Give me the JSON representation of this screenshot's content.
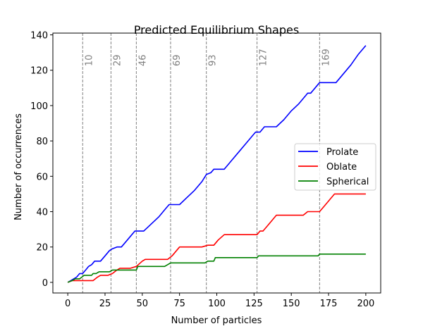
{
  "chart_data": {
    "type": "line",
    "title": "Predicted Equilibrium Shapes",
    "xlabel": "Number of particles",
    "ylabel": "Number of occurrences",
    "xlim": [
      -10,
      210
    ],
    "ylim": [
      -6,
      141
    ],
    "xticks": [
      0,
      25,
      50,
      75,
      100,
      125,
      150,
      175,
      200
    ],
    "yticks": [
      0,
      20,
      40,
      60,
      80,
      100,
      120,
      140
    ],
    "grid": false,
    "legend_position": "center-right",
    "vlines": [
      {
        "x": 10,
        "label": "10"
      },
      {
        "x": 29,
        "label": "29"
      },
      {
        "x": 46,
        "label": "46"
      },
      {
        "x": 69,
        "label": "69"
      },
      {
        "x": 93,
        "label": "93"
      },
      {
        "x": 127,
        "label": "127"
      },
      {
        "x": 169,
        "label": "169"
      }
    ],
    "series": [
      {
        "name": "Prolate",
        "color": "#0000ff",
        "points": [
          [
            0,
            0
          ],
          [
            2,
            1
          ],
          [
            4,
            2
          ],
          [
            6,
            3
          ],
          [
            8,
            5
          ],
          [
            10,
            5
          ],
          [
            12,
            7
          ],
          [
            14,
            9
          ],
          [
            16,
            10
          ],
          [
            18,
            12
          ],
          [
            22,
            12
          ],
          [
            25,
            15
          ],
          [
            28,
            18
          ],
          [
            30,
            19
          ],
          [
            33,
            20
          ],
          [
            36,
            20
          ],
          [
            39,
            23
          ],
          [
            42,
            26
          ],
          [
            45,
            29
          ],
          [
            51,
            29
          ],
          [
            56,
            33
          ],
          [
            61,
            37
          ],
          [
            66,
            42
          ],
          [
            68,
            44
          ],
          [
            70,
            44
          ],
          [
            75,
            44
          ],
          [
            80,
            48
          ],
          [
            85,
            52
          ],
          [
            90,
            57
          ],
          [
            93,
            61
          ],
          [
            96,
            62
          ],
          [
            98,
            64
          ],
          [
            105,
            64
          ],
          [
            110,
            69
          ],
          [
            115,
            74
          ],
          [
            120,
            79
          ],
          [
            125,
            84
          ],
          [
            126,
            85
          ],
          [
            129,
            85
          ],
          [
            132,
            88
          ],
          [
            140,
            88
          ],
          [
            145,
            92
          ],
          [
            150,
            97
          ],
          [
            155,
            101
          ],
          [
            160,
            106
          ],
          [
            161,
            107
          ],
          [
            163,
            107
          ],
          [
            166,
            110
          ],
          [
            169,
            113
          ],
          [
            180,
            113
          ],
          [
            185,
            118
          ],
          [
            190,
            123
          ],
          [
            195,
            129
          ],
          [
            200,
            134
          ]
        ]
      },
      {
        "name": "Oblate",
        "color": "#ff0000",
        "points": [
          [
            0,
            0
          ],
          [
            3,
            1
          ],
          [
            17,
            1
          ],
          [
            20,
            3
          ],
          [
            22,
            4
          ],
          [
            27,
            4
          ],
          [
            30,
            5
          ],
          [
            33,
            7
          ],
          [
            35,
            8
          ],
          [
            42,
            8
          ],
          [
            46,
            9
          ],
          [
            50,
            12
          ],
          [
            52,
            13
          ],
          [
            67,
            13
          ],
          [
            70,
            15
          ],
          [
            72,
            17
          ],
          [
            75,
            20
          ],
          [
            90,
            20
          ],
          [
            94,
            21
          ],
          [
            98,
            21
          ],
          [
            101,
            24
          ],
          [
            105,
            27
          ],
          [
            127,
            27
          ],
          [
            129,
            29
          ],
          [
            131,
            29
          ],
          [
            134,
            32
          ],
          [
            137,
            35
          ],
          [
            140,
            38
          ],
          [
            158,
            38
          ],
          [
            161,
            40
          ],
          [
            166,
            40
          ],
          [
            169,
            40
          ],
          [
            172,
            43
          ],
          [
            176,
            47
          ],
          [
            179,
            50
          ],
          [
            200,
            50
          ]
        ]
      },
      {
        "name": "Spherical",
        "color": "#008000",
        "points": [
          [
            0,
            0
          ],
          [
            3,
            1
          ],
          [
            5,
            2
          ],
          [
            8,
            2
          ],
          [
            11,
            4
          ],
          [
            16,
            4
          ],
          [
            17,
            5
          ],
          [
            19,
            5
          ],
          [
            21,
            6
          ],
          [
            28,
            6
          ],
          [
            30,
            7
          ],
          [
            46,
            7
          ],
          [
            47,
            9
          ],
          [
            65,
            9
          ],
          [
            67,
            10
          ],
          [
            69,
            11
          ],
          [
            92,
            11
          ],
          [
            94,
            12
          ],
          [
            98,
            12
          ],
          [
            99,
            14
          ],
          [
            127,
            14
          ],
          [
            128,
            15
          ],
          [
            168,
            15
          ],
          [
            169,
            16
          ],
          [
            200,
            16
          ]
        ]
      }
    ]
  }
}
